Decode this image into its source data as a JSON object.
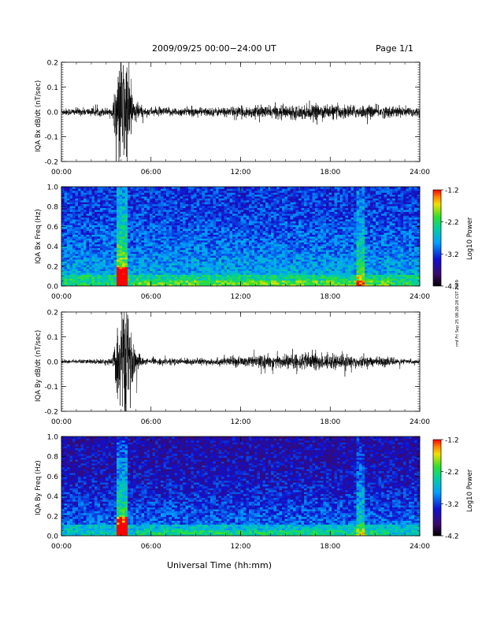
{
  "header": {
    "title": "2009/09/25  00:00−24:00 UT",
    "page": "Page 1/1"
  },
  "side_stamp": "rmf Fri Sep 25 08:28:28 CST 2009",
  "x_axis_label": "Universal Time (hh:mm)",
  "colorbar": {
    "label": "Log10 Power",
    "ticks": [
      "-1.2",
      "-2.2",
      "-3.2",
      "-4.2"
    ]
  },
  "chart_data": [
    {
      "type": "line",
      "name_label": "IQA Bx dB/dt (nT/sec)",
      "ylabel": "IQA Bx dB/dt (nT/sec)",
      "ylim": [
        -0.2,
        0.2
      ],
      "yticks": [
        "0.2",
        "0.1",
        "0.0",
        "-0.1",
        "-0.2"
      ],
      "xticks": [
        "00:00",
        "06:00",
        "12:00",
        "18:00",
        "24:00"
      ],
      "xlim_hours": [
        0,
        24
      ],
      "envelope": [
        {
          "hour": 0,
          "amp": 0.012
        },
        {
          "hour": 3.4,
          "amp": 0.015
        },
        {
          "hour": 3.7,
          "amp": 0.12
        },
        {
          "hour": 4.0,
          "amp": 0.2
        },
        {
          "hour": 4.4,
          "amp": 0.2
        },
        {
          "hour": 4.8,
          "amp": 0.05
        },
        {
          "hour": 5.5,
          "amp": 0.015
        },
        {
          "hour": 10,
          "amp": 0.015
        },
        {
          "hour": 13,
          "amp": 0.02
        },
        {
          "hour": 17,
          "amp": 0.025
        },
        {
          "hour": 20,
          "amp": 0.022
        },
        {
          "hour": 24,
          "amp": 0.018
        }
      ]
    },
    {
      "type": "heatmap",
      "ylabel": "IQA Bx Freq (Hz)",
      "ylim": [
        0.0,
        1.0
      ],
      "yticks": [
        "1.0",
        "0.8",
        "0.6",
        "0.4",
        "0.2",
        "0.0"
      ],
      "xticks": [
        "00:00",
        "06:00",
        "12:00",
        "18:00",
        "24:00"
      ],
      "zlim": [
        -4.2,
        -1.2
      ],
      "features": [
        {
          "hour_start": 3.7,
          "hour_end": 4.4,
          "kind": "broadband_burst"
        },
        {
          "hour_start": 19.8,
          "hour_end": 20.3,
          "kind": "broadband_stripe"
        }
      ]
    },
    {
      "type": "line",
      "ylabel": "IQA By dB/dt (nT/sec)",
      "ylim": [
        -0.2,
        0.2
      ],
      "yticks": [
        "0.2",
        "0.1",
        "0.0",
        "-0.1",
        "-0.2"
      ],
      "xticks": [
        "00:00",
        "06:00",
        "12:00",
        "18:00",
        "24:00"
      ],
      "xlim_hours": [
        0,
        24
      ],
      "envelope": [
        {
          "hour": 0,
          "amp": 0.006
        },
        {
          "hour": 3.4,
          "amp": 0.01
        },
        {
          "hour": 3.7,
          "amp": 0.12
        },
        {
          "hour": 4.0,
          "amp": 0.2
        },
        {
          "hour": 4.4,
          "amp": 0.2
        },
        {
          "hour": 4.8,
          "amp": 0.06
        },
        {
          "hour": 5.5,
          "amp": 0.01
        },
        {
          "hour": 10,
          "amp": 0.012
        },
        {
          "hour": 13,
          "amp": 0.02
        },
        {
          "hour": 17,
          "amp": 0.03
        },
        {
          "hour": 20,
          "amp": 0.02
        },
        {
          "hour": 24,
          "amp": 0.006
        }
      ]
    },
    {
      "type": "heatmap",
      "ylabel": "IQA By Freq (Hz)",
      "ylim": [
        0.0,
        1.0
      ],
      "yticks": [
        "1.0",
        "0.8",
        "0.6",
        "0.4",
        "0.2",
        "0.0"
      ],
      "xticks": [
        "00:00",
        "06:00",
        "12:00",
        "18:00",
        "24:00"
      ],
      "zlim": [
        -4.2,
        -1.2
      ],
      "features": [
        {
          "hour_start": 3.7,
          "hour_end": 4.4,
          "kind": "broadband_burst"
        },
        {
          "hour_start": 19.8,
          "hour_end": 20.3,
          "kind": "broadband_stripe"
        }
      ]
    }
  ]
}
